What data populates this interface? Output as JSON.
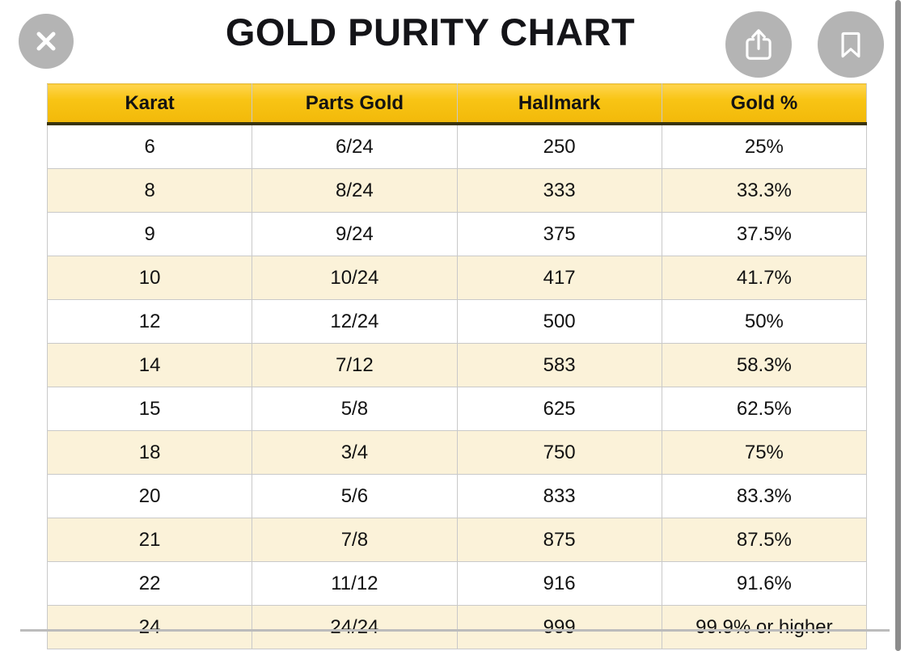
{
  "title": "GOLD PURITY CHART",
  "toolbar": {
    "close": {
      "icon": "close-icon",
      "glyph": "✕"
    },
    "share": {
      "icon": "share-icon",
      "glyph": "box-with-up-arrow"
    },
    "bookmark": {
      "icon": "bookmark-icon",
      "glyph": "bookmark-outline"
    }
  },
  "table": {
    "headers": [
      "Karat",
      "Parts Gold",
      "Hallmark",
      "Gold %"
    ],
    "rows": [
      [
        "6",
        "6/24",
        "250",
        "25%"
      ],
      [
        "8",
        "8/24",
        "333",
        "33.3%"
      ],
      [
        "9",
        "9/24",
        "375",
        "37.5%"
      ],
      [
        "10",
        "10/24",
        "417",
        "41.7%"
      ],
      [
        "12",
        "12/24",
        "500",
        "50%"
      ],
      [
        "14",
        "7/12",
        "583",
        "58.3%"
      ],
      [
        "15",
        "5/8",
        "625",
        "62.5%"
      ],
      [
        "18",
        "3/4",
        "750",
        "75%"
      ],
      [
        "20",
        "5/6",
        "833",
        "83.3%"
      ],
      [
        "21",
        "7/8",
        "875",
        "87.5%"
      ],
      [
        "22",
        "11/12",
        "916",
        "91.6%"
      ],
      [
        "24",
        "24/24",
        "999",
        "99.9% or higher"
      ]
    ]
  },
  "colors": {
    "header_yellow": "#F5BE0D",
    "header_yellow_light": "#FFD54F",
    "header_underline": "#39330C",
    "row_cream": "#FBF2D9",
    "row_white": "#FFFFFF",
    "cell_border": "#C9C9C9",
    "title_black": "#141418",
    "button_gray": "#B4B4B4",
    "scrollbar_gray": "#8C8C8C"
  },
  "chart_data": {
    "type": "table",
    "title": "GOLD PURITY CHART",
    "columns": [
      "Karat",
      "Parts Gold",
      "Hallmark",
      "Gold %"
    ],
    "rows": [
      [
        "6",
        "6/24",
        "250",
        "25%"
      ],
      [
        "8",
        "8/24",
        "333",
        "33.3%"
      ],
      [
        "9",
        "9/24",
        "375",
        "37.5%"
      ],
      [
        "10",
        "10/24",
        "417",
        "41.7%"
      ],
      [
        "12",
        "12/24",
        "500",
        "50%"
      ],
      [
        "14",
        "7/12",
        "583",
        "58.3%"
      ],
      [
        "15",
        "5/8",
        "625",
        "62.5%"
      ],
      [
        "18",
        "3/4",
        "750",
        "75%"
      ],
      [
        "20",
        "5/6",
        "833",
        "83.3%"
      ],
      [
        "21",
        "7/8",
        "875",
        "87.5%"
      ],
      [
        "22",
        "11/12",
        "916",
        "91.6%"
      ],
      [
        "24",
        "24/24",
        "999",
        "99.9% or higher"
      ]
    ]
  }
}
